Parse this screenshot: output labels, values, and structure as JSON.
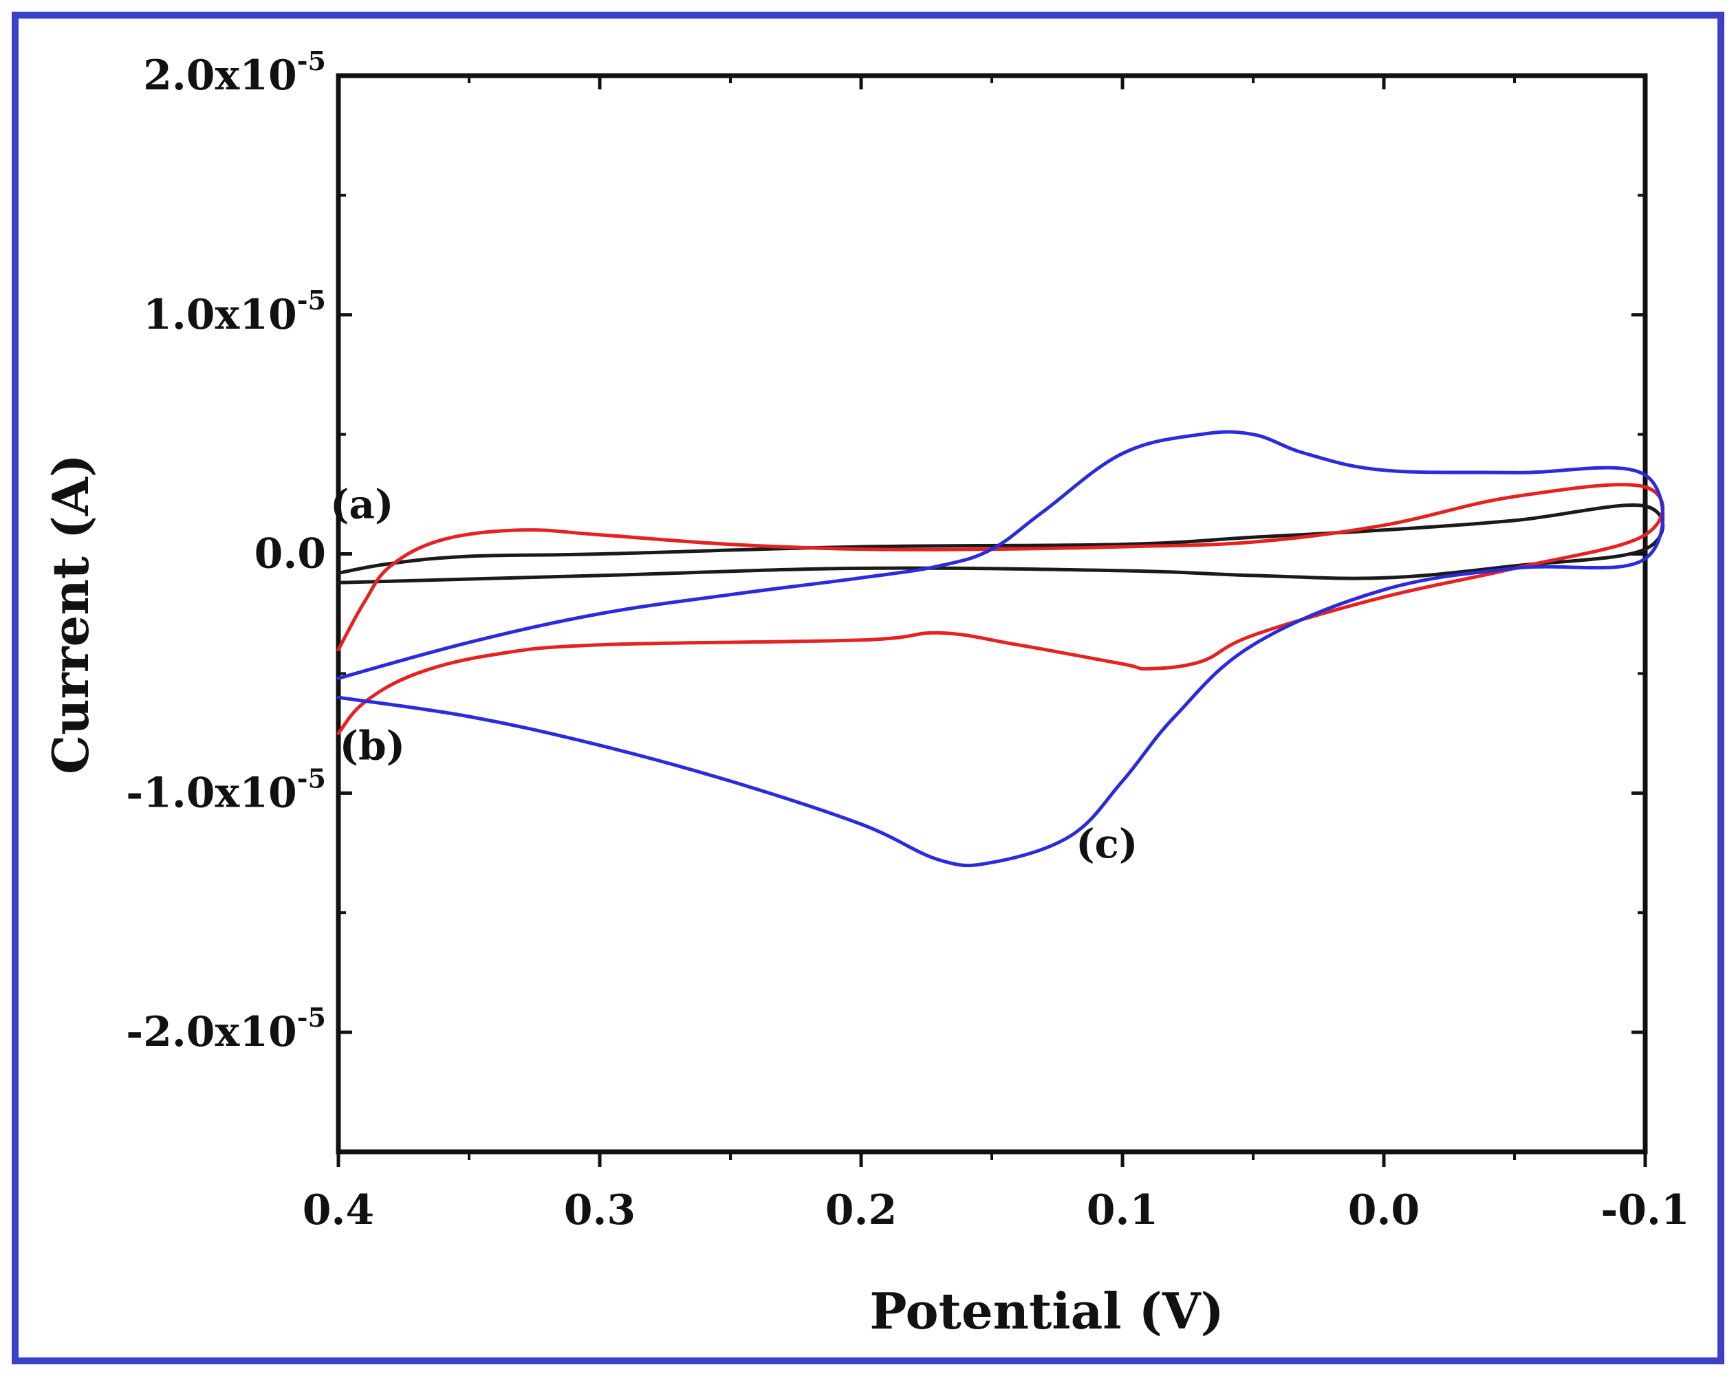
{
  "chart_data": {
    "type": "line",
    "title": "",
    "xlabel": "Potential (V)",
    "ylabel": "Current (A)",
    "xlim": [
      0.4,
      -0.1
    ],
    "ylim": [
      -2.5e-05,
      2e-05
    ],
    "x_reversed": true,
    "grid": false,
    "x_ticks": [
      {
        "value": 0.4,
        "label": "0.4"
      },
      {
        "value": 0.3,
        "label": "0.3"
      },
      {
        "value": 0.2,
        "label": "0.2"
      },
      {
        "value": 0.1,
        "label": "0.1"
      },
      {
        "value": 0.0,
        "label": "0.0"
      },
      {
        "value": -0.1,
        "label": "-0.1"
      }
    ],
    "y_ticks": [
      {
        "value": 2e-05,
        "mantissa": "2.0x10",
        "exponent": "-5"
      },
      {
        "value": 1e-05,
        "mantissa": "1.0x10",
        "exponent": "-5"
      },
      {
        "value": 0.0,
        "mantissa": "0.0",
        "exponent": ""
      },
      {
        "value": -1e-05,
        "mantissa": "-1.0x10",
        "exponent": "-5"
      },
      {
        "value": -2e-05,
        "mantissa": "-2.0x10",
        "exponent": "-5"
      }
    ],
    "series": [
      {
        "name": "(a)",
        "color": "#1a1a1a",
        "points": [
          [
            0.4,
            -8e-07
          ],
          [
            0.38,
            -4e-07
          ],
          [
            0.35,
            -1e-07
          ],
          [
            0.3,
            0.0
          ],
          [
            0.2,
            3e-07
          ],
          [
            0.1,
            4e-07
          ],
          [
            0.05,
            7e-07
          ],
          [
            0.0,
            1e-06
          ],
          [
            -0.05,
            1.4e-06
          ],
          [
            -0.1,
            2e-06
          ],
          [
            -0.1,
            2e-07
          ],
          [
            -0.05,
            -5e-07
          ],
          [
            0.0,
            -1e-06
          ],
          [
            0.05,
            -9e-07
          ],
          [
            0.1,
            -7e-07
          ],
          [
            0.2,
            -6e-07
          ],
          [
            0.3,
            -9e-07
          ],
          [
            0.4,
            -1.2e-06
          ]
        ]
      },
      {
        "name": "(b)",
        "color": "#e52222",
        "points": [
          [
            0.4,
            -7.5e-06
          ],
          [
            0.39,
            -6.2e-06
          ],
          [
            0.37,
            -5e-06
          ],
          [
            0.34,
            -4.2e-06
          ],
          [
            0.3,
            -3.8e-06
          ],
          [
            0.2,
            -3.6e-06
          ],
          [
            0.17,
            -3.3e-06
          ],
          [
            0.14,
            -3.8e-06
          ],
          [
            0.1,
            -4.6e-06
          ],
          [
            0.09,
            -4.8e-06
          ],
          [
            0.07,
            -4.5e-06
          ],
          [
            0.05,
            -3.4e-06
          ],
          [
            0.0,
            -1.8e-06
          ],
          [
            -0.05,
            -6e-07
          ],
          [
            -0.1,
            8e-07
          ],
          [
            -0.1,
            2.8e-06
          ],
          [
            -0.05,
            2.4e-06
          ],
          [
            0.0,
            1.2e-06
          ],
          [
            0.05,
            5e-07
          ],
          [
            0.1,
            3e-07
          ],
          [
            0.15,
            2e-07
          ],
          [
            0.2,
            2e-07
          ],
          [
            0.25,
            4e-07
          ],
          [
            0.3,
            8e-07
          ],
          [
            0.33,
            1e-06
          ],
          [
            0.36,
            6e-07
          ],
          [
            0.38,
            -5e-07
          ],
          [
            0.39,
            -2e-06
          ],
          [
            0.4,
            -4e-06
          ]
        ]
      },
      {
        "name": "(c)",
        "color": "#2b2bdd",
        "points": [
          [
            0.4,
            -6e-06
          ],
          [
            0.35,
            -6.8e-06
          ],
          [
            0.3,
            -8e-06
          ],
          [
            0.25,
            -9.5e-06
          ],
          [
            0.2,
            -1.13e-05
          ],
          [
            0.17,
            -1.28e-05
          ],
          [
            0.15,
            -1.29e-05
          ],
          [
            0.12,
            -1.18e-05
          ],
          [
            0.1,
            -9.5e-06
          ],
          [
            0.08,
            -6.8e-06
          ],
          [
            0.05,
            -3.8e-06
          ],
          [
            0.0,
            -1.5e-06
          ],
          [
            -0.05,
            -6e-07
          ],
          [
            -0.1,
            -2e-07
          ],
          [
            -0.1,
            3.3e-06
          ],
          [
            -0.05,
            3.4e-06
          ],
          [
            0.0,
            3.5e-06
          ],
          [
            0.03,
            4.2e-06
          ],
          [
            0.05,
            5e-06
          ],
          [
            0.07,
            5e-06
          ],
          [
            0.1,
            4.2e-06
          ],
          [
            0.13,
            1.8e-06
          ],
          [
            0.15,
            2e-07
          ],
          [
            0.17,
            -5e-07
          ],
          [
            0.2,
            -1e-06
          ],
          [
            0.25,
            -1.7e-06
          ],
          [
            0.3,
            -2.5e-06
          ],
          [
            0.35,
            -3.7e-06
          ],
          [
            0.4,
            -5.2e-06
          ]
        ]
      }
    ],
    "annotations": [
      {
        "text": "(a)",
        "x": 0.391,
        "y": 1.5e-06
      },
      {
        "text": "(b)",
        "x": 0.387,
        "y": -8.6e-06
      },
      {
        "text": "(c)",
        "x": 0.106,
        "y": -1.27e-05
      }
    ]
  }
}
